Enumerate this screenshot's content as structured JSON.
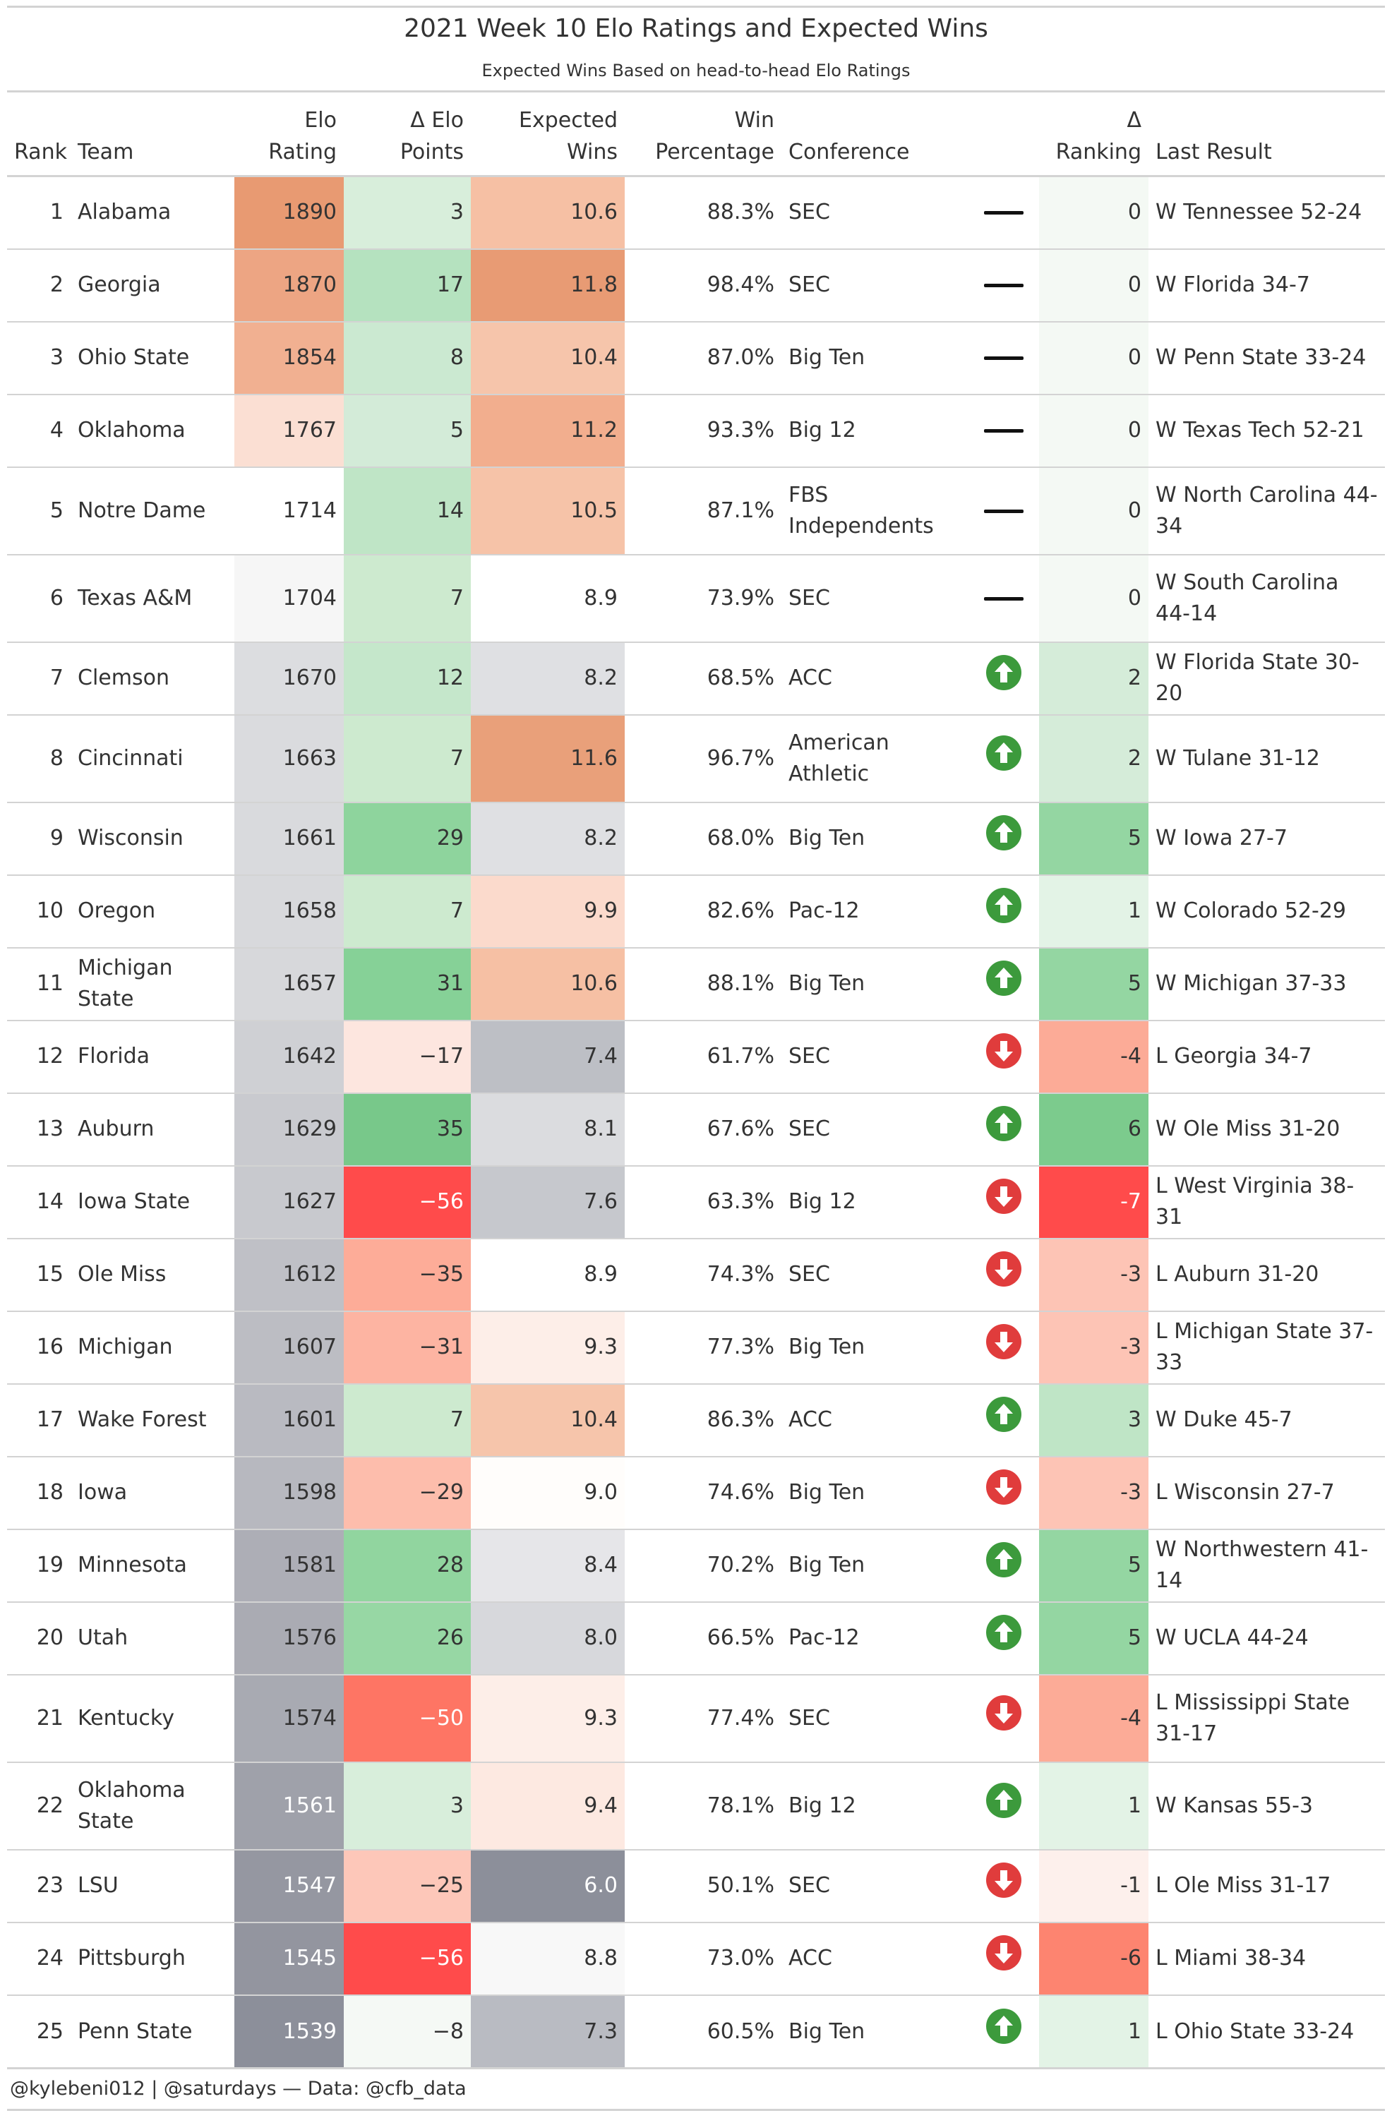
{
  "title": "2021 Week 10 Elo Ratings and Expected Wins",
  "subtitle": "Expected Wins Based on head-to-head Elo Ratings",
  "columns": {
    "rank": "Rank",
    "team": "Team",
    "elo_1": "Elo",
    "elo_2": "Rating",
    "delta_elo_1": "Δ Elo",
    "delta_elo_2": "Points",
    "exp_wins_1": "Expected",
    "exp_wins_2": "Wins",
    "win_pct_1": "Win",
    "win_pct_2": "Percentage",
    "conference": "Conference",
    "delta_rank_1": "Δ",
    "delta_rank_2": "Ranking",
    "last_result": "Last Result"
  },
  "colors": {
    "elo_high": "#e89a72",
    "elo_low": "#8c8f9a",
    "positive": "#78c88a",
    "negative": "#ff4b4b",
    "arrow_up": "#3c9a3c",
    "arrow_down": "#e03c3c"
  },
  "rows": [
    {
      "rank": "1",
      "team": "Alabama",
      "elo": "1890",
      "delta_elo": "3",
      "expected_wins": "10.6",
      "win_pct": "88.3%",
      "conference": "SEC",
      "trend": "flat",
      "delta_rank": "0",
      "last_result": "W Tennessee 52-24",
      "elo_bg": "#e89a72",
      "delta_elo_bg": "#d8eedb",
      "ew_bg": "#f6c0a4",
      "ew_fg": "#333333",
      "dr_bg": "#f4f9f4",
      "elo_fg": "#333333",
      "de_fg": "#333333",
      "dr_fg": "#333333"
    },
    {
      "rank": "2",
      "team": "Georgia",
      "elo": "1870",
      "delta_elo": "17",
      "expected_wins": "11.8",
      "win_pct": "98.4%",
      "conference": "SEC",
      "trend": "flat",
      "delta_rank": "0",
      "last_result": "W Florida 34-7",
      "elo_bg": "#eda583",
      "delta_elo_bg": "#b5e2bf",
      "ew_bg": "#e89b74",
      "ew_fg": "#333333",
      "dr_bg": "#f4f9f4",
      "elo_fg": "#333333",
      "de_fg": "#333333",
      "dr_fg": "#333333"
    },
    {
      "rank": "3",
      "team": "Ohio State",
      "elo": "1854",
      "delta_elo": "8",
      "expected_wins": "10.4",
      "win_pct": "87.0%",
      "conference": "Big Ten",
      "trend": "flat",
      "delta_rank": "0",
      "last_result": "W Penn State 33-24",
      "elo_bg": "#f1b091",
      "delta_elo_bg": "#cbe9d1",
      "ew_bg": "#f6c5ab",
      "ew_fg": "#333333",
      "dr_bg": "#f4f9f4",
      "elo_fg": "#333333",
      "de_fg": "#333333",
      "dr_fg": "#333333"
    },
    {
      "rank": "4",
      "team": "Oklahoma",
      "elo": "1767",
      "delta_elo": "5",
      "expected_wins": "11.2",
      "win_pct": "93.3%",
      "conference": "Big 12",
      "trend": "flat",
      "delta_rank": "0",
      "last_result": "W Texas Tech 52-21",
      "elo_bg": "#fbdfd3",
      "delta_elo_bg": "#d3ebd8",
      "ew_bg": "#f2ae8e",
      "ew_fg": "#333333",
      "dr_bg": "#f4f9f4",
      "elo_fg": "#333333",
      "de_fg": "#333333",
      "dr_fg": "#333333"
    },
    {
      "rank": "5",
      "team": "Notre Dame",
      "elo": "1714",
      "delta_elo": "14",
      "expected_wins": "10.5",
      "win_pct": "87.1%",
      "conference": "FBS Independents",
      "trend": "flat",
      "delta_rank": "0",
      "last_result": "W North Carolina 44-34",
      "elo_bg": "#ffffff",
      "delta_elo_bg": "#bfe5c6",
      "ew_bg": "#f6c3a8",
      "ew_fg": "#333333",
      "dr_bg": "#f4f9f4",
      "elo_fg": "#333333",
      "de_fg": "#333333",
      "dr_fg": "#333333"
    },
    {
      "rank": "6",
      "team": "Texas A&M",
      "elo": "1704",
      "delta_elo": "7",
      "expected_wins": "8.9",
      "win_pct": "73.9%",
      "conference": "SEC",
      "trend": "flat",
      "delta_rank": "0",
      "last_result": "W South Carolina 44-14",
      "elo_bg": "#f6f6f6",
      "delta_elo_bg": "#cdeacf",
      "ew_bg": "#ffffff",
      "ew_fg": "#333333",
      "dr_bg": "#f4f9f4",
      "elo_fg": "#333333",
      "de_fg": "#333333",
      "dr_fg": "#333333"
    },
    {
      "rank": "7",
      "team": "Clemson",
      "elo": "1670",
      "delta_elo": "12",
      "expected_wins": "8.2",
      "win_pct": "68.5%",
      "conference": "ACC",
      "trend": "up",
      "delta_rank": "2",
      "last_result": "W Florida State 30-20",
      "elo_bg": "#dcdde0",
      "delta_elo_bg": "#c5e7cb",
      "ew_bg": "#dfe0e3",
      "ew_fg": "#333333",
      "dr_bg": "#d5ecd9",
      "elo_fg": "#333333",
      "de_fg": "#333333",
      "dr_fg": "#333333"
    },
    {
      "rank": "8",
      "team": "Cincinnati",
      "elo": "1663",
      "delta_elo": "7",
      "expected_wins": "11.6",
      "win_pct": "96.7%",
      "conference": "American Athletic",
      "trend": "up",
      "delta_rank": "2",
      "last_result": "W Tulane 31-12",
      "elo_bg": "#dadbde",
      "delta_elo_bg": "#cdeacf",
      "ew_bg": "#e9a07a",
      "ew_fg": "#333333",
      "dr_bg": "#d5ecd9",
      "elo_fg": "#333333",
      "de_fg": "#333333",
      "dr_fg": "#333333"
    },
    {
      "rank": "9",
      "team": "Wisconsin",
      "elo": "1661",
      "delta_elo": "29",
      "expected_wins": "8.2",
      "win_pct": "68.0%",
      "conference": "Big Ten",
      "trend": "up",
      "delta_rank": "5",
      "last_result": "W Iowa 27-7",
      "elo_bg": "#d9dadd",
      "delta_elo_bg": "#8ed49d",
      "ew_bg": "#dfe0e3",
      "ew_fg": "#333333",
      "dr_bg": "#94d6a2",
      "elo_fg": "#333333",
      "de_fg": "#333333",
      "dr_fg": "#333333"
    },
    {
      "rank": "10",
      "team": "Oregon",
      "elo": "1658",
      "delta_elo": "7",
      "expected_wins": "9.9",
      "win_pct": "82.6%",
      "conference": "Pac-12",
      "trend": "up",
      "delta_rank": "1",
      "last_result": "W Colorado 52-29",
      "elo_bg": "#d8d9dc",
      "delta_elo_bg": "#cdeacf",
      "ew_bg": "#fbdacc",
      "ew_fg": "#333333",
      "dr_bg": "#e3f3e6",
      "elo_fg": "#333333",
      "de_fg": "#333333",
      "dr_fg": "#333333"
    },
    {
      "rank": "11",
      "team": "Michigan State",
      "elo": "1657",
      "delta_elo": "31",
      "expected_wins": "10.6",
      "win_pct": "88.1%",
      "conference": "Big Ten",
      "trend": "up",
      "delta_rank": "5",
      "last_result": "W Michigan 37-33",
      "elo_bg": "#d7d8db",
      "delta_elo_bg": "#86d197",
      "ew_bg": "#f6c0a4",
      "ew_fg": "#333333",
      "dr_bg": "#94d6a2",
      "elo_fg": "#333333",
      "de_fg": "#333333",
      "dr_fg": "#333333"
    },
    {
      "rank": "12",
      "team": "Florida",
      "elo": "1642",
      "delta_elo": "−17",
      "expected_wins": "7.4",
      "win_pct": "61.7%",
      "conference": "SEC",
      "trend": "down",
      "delta_rank": "-4",
      "last_result": "L Georgia 34-7",
      "elo_bg": "#cfd0d4",
      "delta_elo_bg": "#fde6df",
      "ew_bg": "#bdbfc5",
      "ew_fg": "#333333",
      "dr_bg": "#fcab97",
      "elo_fg": "#333333",
      "de_fg": "#333333",
      "dr_fg": "#333333"
    },
    {
      "rank": "13",
      "team": "Auburn",
      "elo": "1629",
      "delta_elo": "35",
      "expected_wins": "8.1",
      "win_pct": "67.6%",
      "conference": "SEC",
      "trend": "up",
      "delta_rank": "6",
      "last_result": "W Ole Miss 31-20",
      "elo_bg": "#c9cacf",
      "delta_elo_bg": "#78c88a",
      "ew_bg": "#dbdcdf",
      "ew_fg": "#333333",
      "dr_bg": "#7ccb8d",
      "elo_fg": "#333333",
      "de_fg": "#333333",
      "dr_fg": "#333333"
    },
    {
      "rank": "14",
      "team": "Iowa State",
      "elo": "1627",
      "delta_elo": "−56",
      "expected_wins": "7.6",
      "win_pct": "63.3%",
      "conference": "Big 12",
      "trend": "down",
      "delta_rank": "-7",
      "last_result": "L West Virginia 38-31",
      "elo_bg": "#c8c9ce",
      "delta_elo_bg": "#ff4b4b",
      "ew_bg": "#c6c8cd",
      "ew_fg": "#333333",
      "dr_bg": "#ff4b4b",
      "elo_fg": "#333333",
      "de_fg": "#ffffff",
      "dr_fg": "#ffffff"
    },
    {
      "rank": "15",
      "team": "Ole Miss",
      "elo": "1612",
      "delta_elo": "−35",
      "expected_wins": "8.9",
      "win_pct": "74.3%",
      "conference": "SEC",
      "trend": "down",
      "delta_rank": "-3",
      "last_result": "L Auburn 31-20",
      "elo_bg": "#bfc0c6",
      "delta_elo_bg": "#fdac98",
      "ew_bg": "#ffffff",
      "ew_fg": "#333333",
      "dr_bg": "#fdc4b5",
      "elo_fg": "#333333",
      "de_fg": "#333333",
      "dr_fg": "#333333"
    },
    {
      "rank": "16",
      "team": "Michigan",
      "elo": "1607",
      "delta_elo": "−31",
      "expected_wins": "9.3",
      "win_pct": "77.3%",
      "conference": "Big Ten",
      "trend": "down",
      "delta_rank": "-3",
      "last_result": "L Michigan State 37-33",
      "elo_bg": "#bcbdc3",
      "delta_elo_bg": "#fdb4a2",
      "ew_bg": "#fdeee8",
      "ew_fg": "#333333",
      "dr_bg": "#fdc4b5",
      "elo_fg": "#333333",
      "de_fg": "#333333",
      "dr_fg": "#333333"
    },
    {
      "rank": "17",
      "team": "Wake Forest",
      "elo": "1601",
      "delta_elo": "7",
      "expected_wins": "10.4",
      "win_pct": "86.3%",
      "conference": "ACC",
      "trend": "up",
      "delta_rank": "3",
      "last_result": "W Duke 45-7",
      "elo_bg": "#b9bac1",
      "delta_elo_bg": "#cdeacf",
      "ew_bg": "#f6c5ab",
      "ew_fg": "#333333",
      "dr_bg": "#bfe5c6",
      "elo_fg": "#333333",
      "de_fg": "#333333",
      "dr_fg": "#333333"
    },
    {
      "rank": "18",
      "team": "Iowa",
      "elo": "1598",
      "delta_elo": "−29",
      "expected_wins": "9.0",
      "win_pct": "74.6%",
      "conference": "Big Ten",
      "trend": "down",
      "delta_rank": "-3",
      "last_result": "L Wisconsin 27-7",
      "elo_bg": "#b7b8bf",
      "delta_elo_bg": "#fdbdac",
      "ew_bg": "#fffdfb",
      "ew_fg": "#333333",
      "dr_bg": "#fdc4b5",
      "elo_fg": "#333333",
      "de_fg": "#333333",
      "dr_fg": "#333333"
    },
    {
      "rank": "19",
      "team": "Minnesota",
      "elo": "1581",
      "delta_elo": "28",
      "expected_wins": "8.4",
      "win_pct": "70.2%",
      "conference": "Big Ten",
      "trend": "up",
      "delta_rank": "5",
      "last_result": "W Northwestern 41-14",
      "elo_bg": "#adaeb6",
      "delta_elo_bg": "#91d59f",
      "ew_bg": "#e6e6e9",
      "ew_fg": "#333333",
      "dr_bg": "#94d6a2",
      "elo_fg": "#333333",
      "de_fg": "#333333",
      "dr_fg": "#333333"
    },
    {
      "rank": "20",
      "team": "Utah",
      "elo": "1576",
      "delta_elo": "26",
      "expected_wins": "8.0",
      "win_pct": "66.5%",
      "conference": "Pac-12",
      "trend": "up",
      "delta_rank": "5",
      "last_result": "W UCLA 44-24",
      "elo_bg": "#aaabb3",
      "delta_elo_bg": "#97d7a4",
      "ew_bg": "#d7d8dc",
      "ew_fg": "#333333",
      "dr_bg": "#94d6a2",
      "elo_fg": "#333333",
      "de_fg": "#333333",
      "dr_fg": "#333333"
    },
    {
      "rank": "21",
      "team": "Kentucky",
      "elo": "1574",
      "delta_elo": "−50",
      "expected_wins": "9.3",
      "win_pct": "77.4%",
      "conference": "SEC",
      "trend": "down",
      "delta_rank": "-4",
      "last_result": "L Mississippi State 31-17",
      "elo_bg": "#a8aab2",
      "delta_elo_bg": "#fe7564",
      "ew_bg": "#fdeee8",
      "ew_fg": "#333333",
      "dr_bg": "#fcab97",
      "elo_fg": "#333333",
      "de_fg": "#ffffff",
      "dr_fg": "#333333"
    },
    {
      "rank": "22",
      "team": "Oklahoma State",
      "elo": "1561",
      "delta_elo": "3",
      "expected_wins": "9.4",
      "win_pct": "78.1%",
      "conference": "Big 12",
      "trend": "up",
      "delta_rank": "1",
      "last_result": "W Kansas 55-3",
      "elo_bg": "#9fa1aa",
      "delta_elo_bg": "#d8eedb",
      "ew_bg": "#fde9e1",
      "ew_fg": "#333333",
      "dr_bg": "#e3f3e6",
      "elo_fg": "#ffffff",
      "de_fg": "#333333",
      "dr_fg": "#333333"
    },
    {
      "rank": "23",
      "team": "LSU",
      "elo": "1547",
      "delta_elo": "−25",
      "expected_wins": "6.0",
      "win_pct": "50.1%",
      "conference": "SEC",
      "trend": "down",
      "delta_rank": "-1",
      "last_result": "L Ole Miss 31-17",
      "elo_bg": "#9597a1",
      "delta_elo_bg": "#fdc7b9",
      "ew_bg": "#8c8f9a",
      "ew_fg": "#ffffff",
      "dr_bg": "#fdf0ec",
      "elo_fg": "#ffffff",
      "de_fg": "#333333",
      "dr_fg": "#333333"
    },
    {
      "rank": "24",
      "team": "Pittsburgh",
      "elo": "1545",
      "delta_elo": "−56",
      "expected_wins": "8.8",
      "win_pct": "73.0%",
      "conference": "ACC",
      "trend": "down",
      "delta_rank": "-6",
      "last_result": "L Miami 38-34",
      "elo_bg": "#93959f",
      "delta_elo_bg": "#ff4b4b",
      "ew_bg": "#f8f8f8",
      "ew_fg": "#333333",
      "dr_bg": "#fd8470",
      "elo_fg": "#ffffff",
      "de_fg": "#ffffff",
      "dr_fg": "#333333"
    },
    {
      "rank": "25",
      "team": "Penn State",
      "elo": "1539",
      "delta_elo": "−8",
      "expected_wins": "7.3",
      "win_pct": "60.5%",
      "conference": "Big Ten",
      "trend": "up",
      "delta_rank": "1",
      "last_result": "L Ohio State 33-24",
      "elo_bg": "#8c8f9a",
      "delta_elo_bg": "#f5f9f5",
      "ew_bg": "#b9bbc2",
      "ew_fg": "#333333",
      "dr_bg": "#e3f3e6",
      "elo_fg": "#ffffff",
      "de_fg": "#333333",
      "dr_fg": "#333333"
    }
  ],
  "footer": "@kylebeni012 | @saturdays — Data: @cfb_data"
}
